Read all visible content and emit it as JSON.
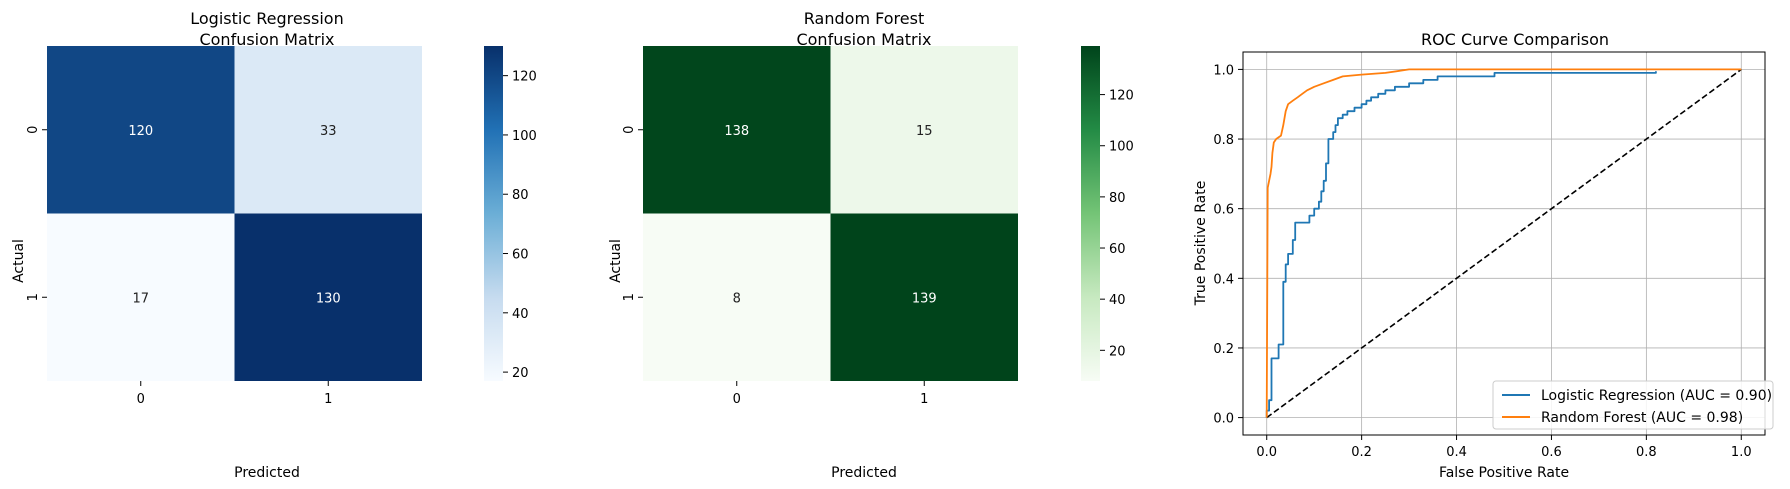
{
  "chart_data": [
    {
      "type": "heatmap",
      "title_lines": [
        "Logistic Regression",
        "Confusion Matrix"
      ],
      "xlabel": "Predicted",
      "ylabel": "Actual",
      "x_ticks": [
        "0",
        "1"
      ],
      "y_ticks": [
        "0",
        "1"
      ],
      "values": [
        [
          120,
          33
        ],
        [
          17,
          130
        ]
      ],
      "colormap": "Blues",
      "colorbar": {
        "ticks": [
          20,
          40,
          60,
          80,
          100,
          120
        ],
        "range": [
          17,
          130
        ]
      }
    },
    {
      "type": "heatmap",
      "title_lines": [
        "Random Forest",
        "Confusion Matrix"
      ],
      "xlabel": "Predicted",
      "ylabel": "Actual",
      "x_ticks": [
        "0",
        "1"
      ],
      "y_ticks": [
        "0",
        "1"
      ],
      "values": [
        [
          138,
          15
        ],
        [
          8,
          139
        ]
      ],
      "colormap": "Greens",
      "colorbar": {
        "ticks": [
          20,
          40,
          60,
          80,
          100,
          120
        ],
        "range": [
          8,
          139
        ]
      }
    },
    {
      "type": "line",
      "title": "ROC Curve Comparison",
      "xlabel": "False Positive Rate",
      "ylabel": "True Positive Rate",
      "xlim": [
        -0.05,
        1.05
      ],
      "ylim": [
        -0.05,
        1.05
      ],
      "x_ticks": [
        0.0,
        0.2,
        0.4,
        0.6,
        0.8,
        1.0
      ],
      "y_ticks": [
        0.0,
        0.2,
        0.4,
        0.6,
        0.8,
        1.0
      ],
      "x_tick_labels": [
        "0.0",
        "0.2",
        "0.4",
        "0.6",
        "0.8",
        "1.0"
      ],
      "y_tick_labels": [
        "0.0",
        "0.2",
        "0.4",
        "0.6",
        "0.8",
        "1.0"
      ],
      "grid": true,
      "legend_position": "lower-right",
      "series": [
        {
          "name": "Logistic Regression (AUC = 0.90)",
          "color": "#1f77b4",
          "step": true,
          "points": [
            [
              0,
              0
            ],
            [
              0,
              0.02
            ],
            [
              0.005,
              0.02
            ],
            [
              0.005,
              0.05
            ],
            [
              0.01,
              0.05
            ],
            [
              0.01,
              0.17
            ],
            [
              0.025,
              0.17
            ],
            [
              0.025,
              0.21
            ],
            [
              0.035,
              0.21
            ],
            [
              0.035,
              0.39
            ],
            [
              0.04,
              0.39
            ],
            [
              0.04,
              0.44
            ],
            [
              0.045,
              0.44
            ],
            [
              0.045,
              0.47
            ],
            [
              0.055,
              0.47
            ],
            [
              0.055,
              0.51
            ],
            [
              0.06,
              0.51
            ],
            [
              0.06,
              0.56
            ],
            [
              0.09,
              0.56
            ],
            [
              0.09,
              0.58
            ],
            [
              0.1,
              0.58
            ],
            [
              0.1,
              0.6
            ],
            [
              0.11,
              0.6
            ],
            [
              0.11,
              0.62
            ],
            [
              0.115,
              0.62
            ],
            [
              0.115,
              0.65
            ],
            [
              0.12,
              0.65
            ],
            [
              0.12,
              0.68
            ],
            [
              0.125,
              0.68
            ],
            [
              0.125,
              0.73
            ],
            [
              0.13,
              0.73
            ],
            [
              0.13,
              0.8
            ],
            [
              0.14,
              0.8
            ],
            [
              0.14,
              0.82
            ],
            [
              0.145,
              0.82
            ],
            [
              0.145,
              0.84
            ],
            [
              0.15,
              0.84
            ],
            [
              0.15,
              0.86
            ],
            [
              0.16,
              0.86
            ],
            [
              0.16,
              0.87
            ],
            [
              0.17,
              0.87
            ],
            [
              0.17,
              0.88
            ],
            [
              0.185,
              0.88
            ],
            [
              0.185,
              0.89
            ],
            [
              0.2,
              0.89
            ],
            [
              0.2,
              0.9
            ],
            [
              0.21,
              0.9
            ],
            [
              0.21,
              0.91
            ],
            [
              0.22,
              0.91
            ],
            [
              0.22,
              0.92
            ],
            [
              0.235,
              0.92
            ],
            [
              0.235,
              0.93
            ],
            [
              0.25,
              0.93
            ],
            [
              0.25,
              0.94
            ],
            [
              0.27,
              0.94
            ],
            [
              0.27,
              0.95
            ],
            [
              0.3,
              0.95
            ],
            [
              0.3,
              0.96
            ],
            [
              0.33,
              0.96
            ],
            [
              0.33,
              0.97
            ],
            [
              0.36,
              0.97
            ],
            [
              0.36,
              0.98
            ],
            [
              0.48,
              0.98
            ],
            [
              0.48,
              0.99
            ],
            [
              0.82,
              0.99
            ],
            [
              0.82,
              0.995
            ]
          ]
        },
        {
          "name": "Random Forest (AUC = 0.98)",
          "color": "#ff7f0e",
          "step": false,
          "points": [
            [
              0,
              0
            ],
            [
              0.002,
              0.66
            ],
            [
              0.005,
              0.68
            ],
            [
              0.008,
              0.7
            ],
            [
              0.01,
              0.72
            ],
            [
              0.012,
              0.76
            ],
            [
              0.015,
              0.79
            ],
            [
              0.02,
              0.8
            ],
            [
              0.03,
              0.81
            ],
            [
              0.035,
              0.84
            ],
            [
              0.04,
              0.88
            ],
            [
              0.045,
              0.9
            ],
            [
              0.055,
              0.91
            ],
            [
              0.065,
              0.92
            ],
            [
              0.075,
              0.93
            ],
            [
              0.085,
              0.94
            ],
            [
              0.1,
              0.95
            ],
            [
              0.12,
              0.96
            ],
            [
              0.14,
              0.97
            ],
            [
              0.16,
              0.98
            ],
            [
              0.2,
              0.985
            ],
            [
              0.25,
              0.99
            ],
            [
              0.3,
              1.0
            ],
            [
              0.5,
              1.0
            ],
            [
              1.0,
              1.0
            ]
          ]
        },
        {
          "name": "chance",
          "color": "#000000",
          "dashed": true,
          "points": [
            [
              0,
              0
            ],
            [
              1,
              1
            ]
          ]
        }
      ]
    }
  ]
}
